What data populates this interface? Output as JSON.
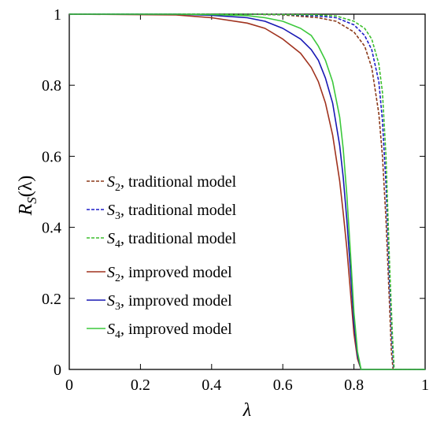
{
  "chart_data": {
    "type": "line",
    "xlabel": "λ",
    "ylabel_main": "R",
    "ylabel_sub": "S",
    "ylabel_arg": "(λ)",
    "xlim": [
      0,
      1
    ],
    "ylim": [
      0,
      1
    ],
    "x_ticks": [
      "0",
      "0.2",
      "0.4",
      "0.6",
      "0.8",
      "1"
    ],
    "y_ticks": [
      "0",
      "0.2",
      "0.4",
      "0.6",
      "0.8",
      "1"
    ],
    "grid": false,
    "legend_position": "center-left",
    "series": [
      {
        "name": "S2, traditional model",
        "symbol": "S",
        "sub": "2",
        "label_rest": ", traditional  model",
        "color": "#8B3A1A",
        "dash": "dashed",
        "x": [
          0,
          0.5,
          0.6,
          0.7,
          0.75,
          0.8,
          0.83,
          0.85,
          0.87,
          0.88,
          0.89,
          0.9,
          0.905,
          0.91,
          1.0
        ],
        "y": [
          1,
          1,
          0.998,
          0.99,
          0.98,
          0.95,
          0.91,
          0.85,
          0.72,
          0.6,
          0.42,
          0.18,
          0.05,
          0,
          0
        ]
      },
      {
        "name": "S3, traditional model",
        "symbol": "S",
        "sub": "3",
        "label_rest": ", traditional  model",
        "color": "#1C1CC8",
        "dash": "dashed",
        "x": [
          0,
          0.5,
          0.6,
          0.7,
          0.75,
          0.8,
          0.83,
          0.85,
          0.87,
          0.88,
          0.89,
          0.9,
          0.907,
          0.912,
          1.0
        ],
        "y": [
          1,
          1,
          0.999,
          0.995,
          0.99,
          0.97,
          0.94,
          0.9,
          0.81,
          0.7,
          0.52,
          0.25,
          0.08,
          0,
          0
        ]
      },
      {
        "name": "S4, traditional model",
        "symbol": "S",
        "sub": "4",
        "label_rest": ", traditional  model",
        "color": "#3DBE2E",
        "dash": "dashed",
        "x": [
          0,
          0.5,
          0.6,
          0.7,
          0.75,
          0.8,
          0.83,
          0.85,
          0.87,
          0.88,
          0.89,
          0.9,
          0.908,
          0.913,
          1.0
        ],
        "y": [
          1,
          1,
          0.999,
          0.998,
          0.995,
          0.98,
          0.96,
          0.93,
          0.86,
          0.78,
          0.6,
          0.3,
          0.1,
          0,
          0
        ]
      },
      {
        "name": "S2, improved model",
        "symbol": "S",
        "sub": "2",
        "label_rest": ", improved  model",
        "color": "#A0321E",
        "dash": "solid",
        "x": [
          0,
          0.3,
          0.4,
          0.5,
          0.55,
          0.6,
          0.65,
          0.68,
          0.7,
          0.72,
          0.74,
          0.76,
          0.77,
          0.78,
          0.79,
          0.8,
          0.81,
          0.82,
          1.0
        ],
        "y": [
          1,
          0.998,
          0.99,
          0.975,
          0.96,
          0.93,
          0.89,
          0.85,
          0.81,
          0.75,
          0.66,
          0.53,
          0.44,
          0.34,
          0.22,
          0.1,
          0.03,
          0,
          0
        ]
      },
      {
        "name": "S3, improved model",
        "symbol": "S",
        "sub": "3",
        "label_rest": ", improved  model",
        "color": "#1818B4",
        "dash": "solid",
        "x": [
          0,
          0.3,
          0.4,
          0.5,
          0.55,
          0.6,
          0.65,
          0.68,
          0.7,
          0.72,
          0.74,
          0.76,
          0.77,
          0.78,
          0.79,
          0.8,
          0.81,
          0.82,
          1.0
        ],
        "y": [
          1,
          1,
          0.997,
          0.99,
          0.98,
          0.96,
          0.93,
          0.9,
          0.87,
          0.82,
          0.75,
          0.63,
          0.54,
          0.42,
          0.28,
          0.13,
          0.04,
          0,
          0
        ]
      },
      {
        "name": "S4, improved model",
        "symbol": "S",
        "sub": "4",
        "label_rest": ", improved  model",
        "color": "#3CC83C",
        "dash": "solid",
        "x": [
          0,
          0.3,
          0.4,
          0.5,
          0.55,
          0.6,
          0.65,
          0.68,
          0.7,
          0.72,
          0.74,
          0.76,
          0.77,
          0.78,
          0.79,
          0.8,
          0.81,
          0.82,
          1.0
        ],
        "y": [
          1,
          1,
          0.999,
          0.996,
          0.99,
          0.98,
          0.96,
          0.94,
          0.91,
          0.87,
          0.81,
          0.71,
          0.62,
          0.49,
          0.33,
          0.16,
          0.05,
          0,
          0
        ]
      }
    ]
  }
}
